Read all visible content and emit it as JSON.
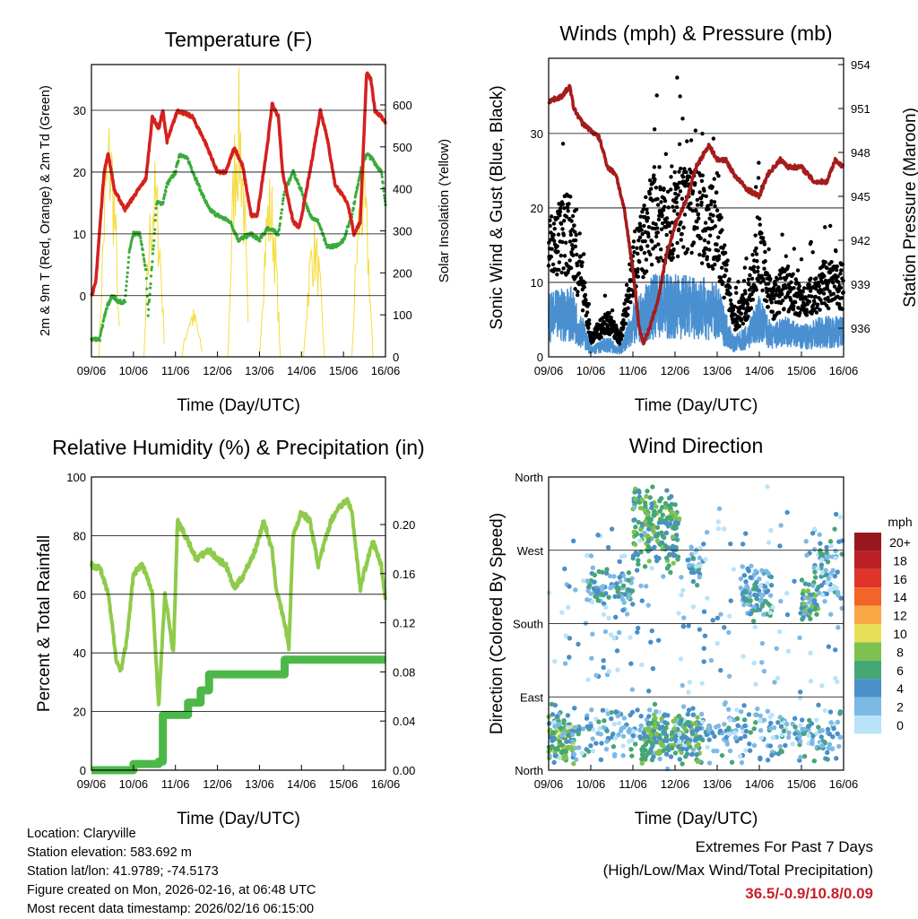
{
  "chart_data": [
    {
      "type": "line",
      "title": "Temperature (F)",
      "xlabel": "Time (Day/UTC)",
      "ylabel": "2m & 9m T (Red, Orange) & 2m Td (Green)",
      "y2label": "Solar Insolation (Yellow)",
      "x_ticks": [
        "09/06",
        "10/06",
        "11/06",
        "12/06",
        "13/06",
        "14/06",
        "15/06",
        "16/06"
      ],
      "xlim": [
        0,
        7
      ],
      "ylim": [
        -9.9,
        37.4
      ],
      "y_ticks": [
        0,
        10,
        20,
        30
      ],
      "y2lim": [
        0,
        696
      ],
      "y2_ticks": [
        0,
        100,
        200,
        300,
        400,
        500,
        600
      ],
      "series": [
        {
          "name": "2m T",
          "color": "#d42020",
          "points": [
            [
              0,
              0
            ],
            [
              0.1,
              2
            ],
            [
              0.3,
              20
            ],
            [
              0.4,
              23
            ],
            [
              0.55,
              17
            ],
            [
              0.8,
              14
            ],
            [
              1.1,
              17
            ],
            [
              1.3,
              19
            ],
            [
              1.45,
              29
            ],
            [
              1.6,
              27
            ],
            [
              1.7,
              30
            ],
            [
              1.8,
              25
            ],
            [
              1.95,
              28
            ],
            [
              2.05,
              30
            ],
            [
              2.4,
              29
            ],
            [
              2.7,
              25
            ],
            [
              3.0,
              20
            ],
            [
              3.2,
              20
            ],
            [
              3.4,
              24
            ],
            [
              3.6,
              21
            ],
            [
              3.8,
              13
            ],
            [
              3.95,
              13
            ],
            [
              4.2,
              25
            ],
            [
              4.3,
              31
            ],
            [
              4.45,
              29
            ],
            [
              4.55,
              20
            ],
            [
              4.8,
              12
            ],
            [
              4.95,
              11
            ],
            [
              5.2,
              20
            ],
            [
              5.45,
              30
            ],
            [
              5.6,
              26
            ],
            [
              5.8,
              18
            ],
            [
              6.1,
              15
            ],
            [
              6.25,
              10
            ],
            [
              6.4,
              12
            ],
            [
              6.55,
              36
            ],
            [
              6.65,
              35
            ],
            [
              6.75,
              30
            ],
            [
              6.9,
              29
            ],
            [
              7,
              28
            ]
          ]
        },
        {
          "name": "2m Td",
          "color": "#3aab3a",
          "points": [
            [
              0,
              -7
            ],
            [
              0.2,
              -7
            ],
            [
              0.35,
              -2
            ],
            [
              0.5,
              0
            ],
            [
              0.65,
              -1
            ],
            [
              0.8,
              -1
            ],
            [
              0.9,
              7
            ],
            [
              1.0,
              10
            ],
            [
              1.15,
              10
            ],
            [
              1.3,
              4
            ],
            [
              1.35,
              -3
            ],
            [
              1.5,
              10
            ],
            [
              1.55,
              15
            ],
            [
              1.7,
              15
            ],
            [
              1.8,
              18
            ],
            [
              2.0,
              20
            ],
            [
              2.1,
              23
            ],
            [
              2.3,
              22
            ],
            [
              2.6,
              17
            ],
            [
              2.8,
              14
            ],
            [
              3.0,
              13
            ],
            [
              3.3,
              12
            ],
            [
              3.5,
              9
            ],
            [
              3.8,
              10
            ],
            [
              4.0,
              9
            ],
            [
              4.2,
              11
            ],
            [
              4.45,
              10
            ],
            [
              4.6,
              17
            ],
            [
              4.8,
              20
            ],
            [
              5.0,
              17
            ],
            [
              5.2,
              13
            ],
            [
              5.4,
              12
            ],
            [
              5.6,
              8
            ],
            [
              5.8,
              8
            ],
            [
              6.0,
              9
            ],
            [
              6.2,
              13
            ],
            [
              6.4,
              20
            ],
            [
              6.55,
              23
            ],
            [
              6.7,
              22
            ],
            [
              6.9,
              20
            ],
            [
              7,
              15
            ]
          ]
        },
        {
          "name": "Solar Insolation",
          "color": "#f5dc3c",
          "peaks": [
            [
              0.43,
              600
            ],
            [
              1.5,
              480
            ],
            [
              2.4,
              120
            ],
            [
              3.5,
              690
            ],
            [
              4.25,
              450
            ],
            [
              5.3,
              330
            ],
            [
              6.45,
              480
            ]
          ]
        }
      ]
    },
    {
      "type": "line",
      "title": "Winds (mph) & Pressure (mb)",
      "xlabel": "Time (Day/UTC)",
      "ylabel": "Sonic Wind & Gust (Blue, Black)",
      "y2label": "Station Pressure (Maroon)",
      "x_ticks": [
        "09/06",
        "10/06",
        "11/06",
        "12/06",
        "13/06",
        "14/06",
        "15/06",
        "16/06"
      ],
      "xlim": [
        0,
        7
      ],
      "ylim": [
        0,
        40.1
      ],
      "y_ticks": [
        0,
        10,
        20,
        30
      ],
      "y2lim": [
        934.04,
        954.43
      ],
      "y2_ticks": [
        936,
        939,
        942,
        945,
        948,
        951,
        954
      ],
      "series": [
        {
          "name": "Pressure",
          "color": "#a51c1c",
          "points": [
            [
              0,
              951.5
            ],
            [
              0.3,
              951.8
            ],
            [
              0.5,
              952.5
            ],
            [
              0.6,
              951
            ],
            [
              0.8,
              950
            ],
            [
              1.0,
              949.5
            ],
            [
              1.2,
              949
            ],
            [
              1.4,
              947
            ],
            [
              1.6,
              946.5
            ],
            [
              1.8,
              944
            ],
            [
              2.0,
              940
            ],
            [
              2.15,
              936
            ],
            [
              2.25,
              935
            ],
            [
              2.4,
              936
            ],
            [
              2.6,
              938
            ],
            [
              2.8,
              941
            ],
            [
              3.0,
              943
            ],
            [
              3.3,
              945
            ],
            [
              3.5,
              947
            ],
            [
              3.8,
              948.5
            ],
            [
              4.0,
              947.5
            ],
            [
              4.2,
              947.5
            ],
            [
              4.4,
              946.5
            ],
            [
              4.7,
              945.5
            ],
            [
              5.0,
              945
            ],
            [
              5.2,
              946.5
            ],
            [
              5.5,
              947.5
            ],
            [
              5.7,
              947
            ],
            [
              6.0,
              947
            ],
            [
              6.3,
              946
            ],
            [
              6.6,
              946
            ],
            [
              6.8,
              947.5
            ],
            [
              7,
              947
            ]
          ]
        },
        {
          "name": "Sonic Wind",
          "color": "#4a90d0",
          "points": [
            [
              0,
              6
            ],
            [
              0.5,
              7
            ],
            [
              0.8,
              4
            ],
            [
              1.0,
              1
            ],
            [
              1.4,
              2
            ],
            [
              1.7,
              1
            ],
            [
              2.0,
              5
            ],
            [
              2.5,
              8
            ],
            [
              3.0,
              8
            ],
            [
              3.5,
              8
            ],
            [
              4.0,
              7
            ],
            [
              4.4,
              2
            ],
            [
              4.7,
              3
            ],
            [
              5.0,
              6
            ],
            [
              5.3,
              3
            ],
            [
              5.6,
              4
            ],
            [
              6.0,
              3
            ],
            [
              6.5,
              4
            ],
            [
              7,
              4
            ]
          ]
        },
        {
          "name": "Gust",
          "color": "#000000",
          "max_point": [
            3.05,
            37.5
          ]
        }
      ]
    },
    {
      "type": "line",
      "title": "Relative Humidity (%) & Precipitation (in)",
      "xlabel": "Time (Day/UTC)",
      "ylabel": "Percent & Total Rainfall",
      "x_ticks": [
        "09/06",
        "10/06",
        "11/06",
        "12/06",
        "13/06",
        "14/06",
        "15/06",
        "16/06"
      ],
      "xlim": [
        0,
        7
      ],
      "ylim": [
        0,
        100
      ],
      "y_ticks": [
        0,
        20,
        40,
        60,
        80,
        100
      ],
      "y2lim": [
        0,
        0.2387
      ],
      "y2_ticks": [
        "0.00",
        "0.04",
        "0.08",
        "0.12",
        "0.16",
        "0.20"
      ],
      "series": [
        {
          "name": "Relative Humidity",
          "color": "#8fcb4a",
          "points": [
            [
              0,
              70
            ],
            [
              0.2,
              69
            ],
            [
              0.4,
              60
            ],
            [
              0.6,
              37
            ],
            [
              0.7,
              34
            ],
            [
              0.85,
              45
            ],
            [
              1.0,
              67
            ],
            [
              1.2,
              70
            ],
            [
              1.3,
              67
            ],
            [
              1.45,
              60
            ],
            [
              1.6,
              22
            ],
            [
              1.75,
              60
            ],
            [
              1.85,
              50
            ],
            [
              1.95,
              40
            ],
            [
              2.05,
              85
            ],
            [
              2.3,
              78
            ],
            [
              2.5,
              72
            ],
            [
              2.8,
              75
            ],
            [
              3.0,
              72
            ],
            [
              3.2,
              70
            ],
            [
              3.4,
              62
            ],
            [
              3.6,
              66
            ],
            [
              3.9,
              75
            ],
            [
              4.1,
              85
            ],
            [
              4.3,
              75
            ],
            [
              4.4,
              62
            ],
            [
              4.6,
              50
            ],
            [
              4.7,
              42
            ],
            [
              4.8,
              80
            ],
            [
              5.0,
              88
            ],
            [
              5.2,
              85
            ],
            [
              5.4,
              70
            ],
            [
              5.7,
              85
            ],
            [
              5.9,
              90
            ],
            [
              6.1,
              92
            ],
            [
              6.2,
              88
            ],
            [
              6.4,
              62
            ],
            [
              6.5,
              68
            ],
            [
              6.7,
              78
            ],
            [
              6.9,
              70
            ],
            [
              7,
              58
            ]
          ]
        },
        {
          "name": "Total Precipitation",
          "color": "#4cb848",
          "steps": [
            [
              0,
              0
            ],
            [
              1.0,
              0.005
            ],
            [
              1.6,
              0.007
            ],
            [
              1.7,
              0.045
            ],
            [
              2.3,
              0.055
            ],
            [
              2.6,
              0.065
            ],
            [
              2.8,
              0.078
            ],
            [
              4.5,
              0.078
            ],
            [
              4.6,
              0.09
            ],
            [
              7,
              0.09
            ]
          ]
        }
      ]
    },
    {
      "type": "scatter",
      "title": "Wind Direction",
      "xlabel": "Time (Day/UTC)",
      "ylabel": "Direction (Colored By Speed)",
      "x_ticks": [
        "09/06",
        "10/06",
        "11/06",
        "12/06",
        "13/06",
        "14/06",
        "15/06",
        "16/06"
      ],
      "xlim": [
        0,
        7
      ],
      "ylim": [
        0,
        360
      ],
      "y_ticks": [
        "North",
        "East",
        "South",
        "West",
        "North"
      ],
      "legend": {
        "title": "mph",
        "labels": [
          "20+",
          "18",
          "16",
          "14",
          "12",
          "10",
          "8",
          "6",
          "4",
          "2",
          "0"
        ],
        "colors": [
          "#98171c",
          "#bd1f27",
          "#e0332a",
          "#f26529",
          "#f9a745",
          "#e7e15a",
          "#7dc24e",
          "#45a774",
          "#4a8fc7",
          "#7db9e5",
          "#b9e3f8"
        ]
      },
      "clusters": [
        [
          0,
          0.6,
          40,
          35,
          7,
          90
        ],
        [
          0,
          7,
          45,
          40,
          3,
          380
        ],
        [
          2.2,
          3.6,
          40,
          35,
          6,
          160
        ],
        [
          0.9,
          2,
          220,
          30,
          4,
          80
        ],
        [
          2.0,
          3.1,
          300,
          60,
          6,
          180
        ],
        [
          3.3,
          3.6,
          250,
          30,
          3,
          30
        ],
        [
          4.6,
          5.3,
          220,
          40,
          4,
          80
        ],
        [
          6.0,
          6.4,
          210,
          30,
          5,
          50
        ],
        [
          6.3,
          7,
          260,
          60,
          3,
          60
        ],
        [
          0,
          7,
          180,
          180,
          2,
          200
        ]
      ]
    }
  ],
  "info": {
    "location": "Location: Claryville",
    "elevation": "Station elevation: 583.692 m",
    "latlon": "Station lat/lon: 41.9789; -74.5173",
    "created": "Figure created on Mon, 2026-02-16, at 06:48 UTC",
    "recent": "Most recent data timestamp: 2026/02/16 06:15:00"
  },
  "extremes": {
    "title": "Extremes For Past 7 Days",
    "subtitle": "(High/Low/Max Wind/Total Precipitation)",
    "values": "36.5/-0.9/10.8/0.09"
  }
}
